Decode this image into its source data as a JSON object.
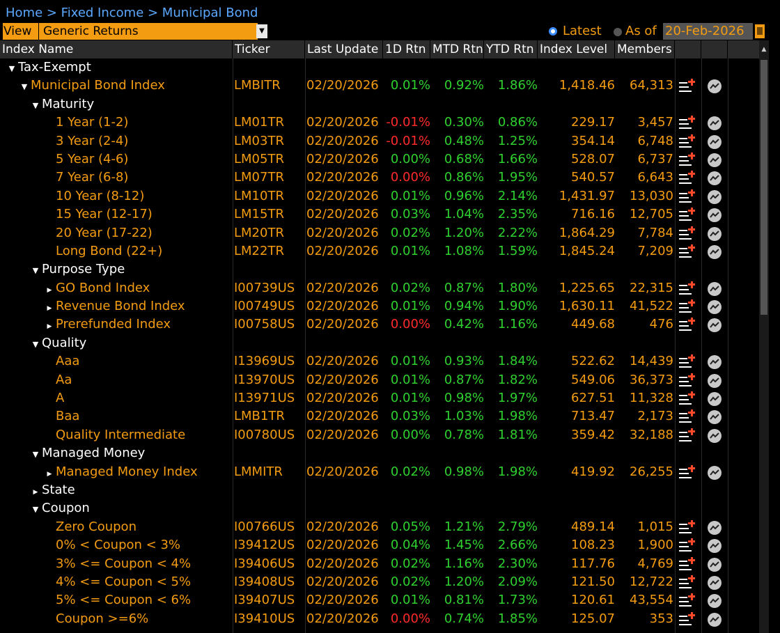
{
  "breadcrumb": "Home > Fixed Income > Municipal Bond",
  "view": {
    "label": "View",
    "selected": "Generic Returns"
  },
  "date_mode": {
    "latest_label": "Latest",
    "as_of_label": "As of",
    "as_of_date": "20-Feb-2026"
  },
  "columns": [
    "Index Name",
    "Ticker",
    "Last Update",
    "1D Rtn",
    "MTD Rtn",
    "YTD Rtn",
    "Index Level",
    "Members"
  ],
  "colors": {
    "accent": "#f39c12",
    "positive": "#2fd12f",
    "negative": "#ff2a2a",
    "link": "#5aa8ff"
  },
  "rows": [
    {
      "name": "Tax-Exempt",
      "level": 0,
      "toggle": "expanded",
      "color": "white"
    },
    {
      "name": "Municipal Bond Index",
      "level": 1,
      "toggle": "expanded",
      "color": "orange",
      "ticker": "LMBITR",
      "updated": "02/20/2026",
      "d1": "0.01%",
      "d1_neg": false,
      "mtd": "0.92%",
      "ytd": "1.86%",
      "index_level": "1,418.46",
      "members": "64,313"
    },
    {
      "name": "Maturity",
      "level": 2,
      "toggle": "expanded",
      "color": "white"
    },
    {
      "name": "1 Year (1-2)",
      "level": 3,
      "toggle": "none",
      "color": "orange",
      "ticker": "LM01TR",
      "updated": "02/20/2026",
      "d1": "-0.01%",
      "d1_neg": true,
      "mtd": "0.30%",
      "ytd": "0.86%",
      "index_level": "229.17",
      "members": "3,457"
    },
    {
      "name": "3 Year (2-4)",
      "level": 3,
      "toggle": "none",
      "color": "orange",
      "ticker": "LM03TR",
      "updated": "02/20/2026",
      "d1": "-0.01%",
      "d1_neg": true,
      "mtd": "0.48%",
      "ytd": "1.25%",
      "index_level": "354.14",
      "members": "6,748"
    },
    {
      "name": "5 Year (4-6)",
      "level": 3,
      "toggle": "none",
      "color": "orange",
      "ticker": "LM05TR",
      "updated": "02/20/2026",
      "d1": "0.00%",
      "d1_neg": false,
      "mtd": "0.68%",
      "ytd": "1.66%",
      "index_level": "528.07",
      "members": "6,737"
    },
    {
      "name": "7 Year (6-8)",
      "level": 3,
      "toggle": "none",
      "color": "orange",
      "ticker": "LM07TR",
      "updated": "02/20/2026",
      "d1": "0.00%",
      "d1_neg": true,
      "mtd": "0.86%",
      "ytd": "1.95%",
      "index_level": "540.57",
      "members": "6,643"
    },
    {
      "name": "10 Year (8-12)",
      "level": 3,
      "toggle": "none",
      "color": "orange",
      "ticker": "LM10TR",
      "updated": "02/20/2026",
      "d1": "0.01%",
      "d1_neg": false,
      "mtd": "0.96%",
      "ytd": "2.14%",
      "index_level": "1,431.97",
      "members": "13,030"
    },
    {
      "name": "15 Year (12-17)",
      "level": 3,
      "toggle": "none",
      "color": "orange",
      "ticker": "LM15TR",
      "updated": "02/20/2026",
      "d1": "0.03%",
      "d1_neg": false,
      "mtd": "1.04%",
      "ytd": "2.35%",
      "index_level": "716.16",
      "members": "12,705"
    },
    {
      "name": "20 Year (17-22)",
      "level": 3,
      "toggle": "none",
      "color": "orange",
      "ticker": "LM20TR",
      "updated": "02/20/2026",
      "d1": "0.02%",
      "d1_neg": false,
      "mtd": "1.20%",
      "ytd": "2.22%",
      "index_level": "1,864.29",
      "members": "7,784"
    },
    {
      "name": "Long Bond (22+)",
      "level": 3,
      "toggle": "none",
      "color": "orange",
      "ticker": "LM22TR",
      "updated": "02/20/2026",
      "d1": "0.01%",
      "d1_neg": false,
      "mtd": "1.08%",
      "ytd": "1.59%",
      "index_level": "1,845.24",
      "members": "7,209"
    },
    {
      "name": "Purpose Type",
      "level": 2,
      "toggle": "expanded",
      "color": "white"
    },
    {
      "name": "GO Bond Index",
      "level": 3,
      "toggle": "collapsed",
      "color": "orange",
      "ticker": "I00739US",
      "updated": "02/20/2026",
      "d1": "0.02%",
      "d1_neg": false,
      "mtd": "0.87%",
      "ytd": "1.80%",
      "index_level": "1,225.65",
      "members": "22,315"
    },
    {
      "name": "Revenue Bond Index",
      "level": 3,
      "toggle": "collapsed",
      "color": "orange",
      "ticker": "I00749US",
      "updated": "02/20/2026",
      "d1": "0.01%",
      "d1_neg": false,
      "mtd": "0.94%",
      "ytd": "1.90%",
      "index_level": "1,630.11",
      "members": "41,522"
    },
    {
      "name": "Prerefunded Index",
      "level": 3,
      "toggle": "collapsed",
      "color": "orange",
      "ticker": "I00758US",
      "updated": "02/20/2026",
      "d1": "0.00%",
      "d1_neg": true,
      "mtd": "0.42%",
      "ytd": "1.16%",
      "index_level": "449.68",
      "members": "476"
    },
    {
      "name": "Quality",
      "level": 2,
      "toggle": "expanded",
      "color": "white"
    },
    {
      "name": "Aaa",
      "level": 3,
      "toggle": "none",
      "color": "orange",
      "ticker": "I13969US",
      "updated": "02/20/2026",
      "d1": "0.01%",
      "d1_neg": false,
      "mtd": "0.93%",
      "ytd": "1.84%",
      "index_level": "522.62",
      "members": "14,439"
    },
    {
      "name": "Aa",
      "level": 3,
      "toggle": "none",
      "color": "orange",
      "ticker": "I13970US",
      "updated": "02/20/2026",
      "d1": "0.01%",
      "d1_neg": false,
      "mtd": "0.87%",
      "ytd": "1.82%",
      "index_level": "549.06",
      "members": "36,373"
    },
    {
      "name": "A",
      "level": 3,
      "toggle": "none",
      "color": "orange",
      "ticker": "I13971US",
      "updated": "02/20/2026",
      "d1": "0.01%",
      "d1_neg": false,
      "mtd": "0.98%",
      "ytd": "1.97%",
      "index_level": "627.51",
      "members": "11,328"
    },
    {
      "name": "Baa",
      "level": 3,
      "toggle": "none",
      "color": "orange",
      "ticker": "LMB1TR",
      "updated": "02/20/2026",
      "d1": "0.03%",
      "d1_neg": false,
      "mtd": "1.03%",
      "ytd": "1.98%",
      "index_level": "713.47",
      "members": "2,173"
    },
    {
      "name": "Quality Intermediate",
      "level": 3,
      "toggle": "none",
      "color": "orange",
      "ticker": "I00780US",
      "updated": "02/20/2026",
      "d1": "0.00%",
      "d1_neg": false,
      "mtd": "0.78%",
      "ytd": "1.81%",
      "index_level": "359.42",
      "members": "32,188"
    },
    {
      "name": "Managed Money",
      "level": 2,
      "toggle": "expanded",
      "color": "white"
    },
    {
      "name": "Managed Money Index",
      "level": 3,
      "toggle": "collapsed",
      "color": "orange",
      "ticker": "LMMITR",
      "updated": "02/20/2026",
      "d1": "0.02%",
      "d1_neg": false,
      "mtd": "0.98%",
      "ytd": "1.98%",
      "index_level": "419.92",
      "members": "26,255"
    },
    {
      "name": "State",
      "level": 2,
      "toggle": "collapsed",
      "color": "white"
    },
    {
      "name": "Coupon",
      "level": 2,
      "toggle": "expanded",
      "color": "white"
    },
    {
      "name": "Zero Coupon",
      "level": 3,
      "toggle": "none",
      "color": "orange",
      "ticker": "I00766US",
      "updated": "02/20/2026",
      "d1": "0.05%",
      "d1_neg": false,
      "mtd": "1.21%",
      "ytd": "2.79%",
      "index_level": "489.14",
      "members": "1,015"
    },
    {
      "name": "0% < Coupon < 3%",
      "level": 3,
      "toggle": "none",
      "color": "orange",
      "ticker": "I39412US",
      "updated": "02/20/2026",
      "d1": "0.04%",
      "d1_neg": false,
      "mtd": "1.45%",
      "ytd": "2.66%",
      "index_level": "108.23",
      "members": "1,900"
    },
    {
      "name": "3% <= Coupon < 4%",
      "level": 3,
      "toggle": "none",
      "color": "orange",
      "ticker": "I39406US",
      "updated": "02/20/2026",
      "d1": "0.02%",
      "d1_neg": false,
      "mtd": "1.16%",
      "ytd": "2.30%",
      "index_level": "117.76",
      "members": "4,769"
    },
    {
      "name": "4% <= Coupon < 5%",
      "level": 3,
      "toggle": "none",
      "color": "orange",
      "ticker": "I39408US",
      "updated": "02/20/2026",
      "d1": "0.02%",
      "d1_neg": false,
      "mtd": "1.20%",
      "ytd": "2.09%",
      "index_level": "121.50",
      "members": "12,722"
    },
    {
      "name": "5% <= Coupon < 6%",
      "level": 3,
      "toggle": "none",
      "color": "orange",
      "ticker": "I39407US",
      "updated": "02/20/2026",
      "d1": "0.01%",
      "d1_neg": false,
      "mtd": "0.81%",
      "ytd": "1.73%",
      "index_level": "120.61",
      "members": "43,554"
    },
    {
      "name": "Coupon >=6%",
      "level": 3,
      "toggle": "none",
      "color": "orange",
      "ticker": "I39410US",
      "updated": "02/20/2026",
      "d1": "0.00%",
      "d1_neg": true,
      "mtd": "0.74%",
      "ytd": "1.85%",
      "index_level": "125.07",
      "members": "353"
    }
  ]
}
